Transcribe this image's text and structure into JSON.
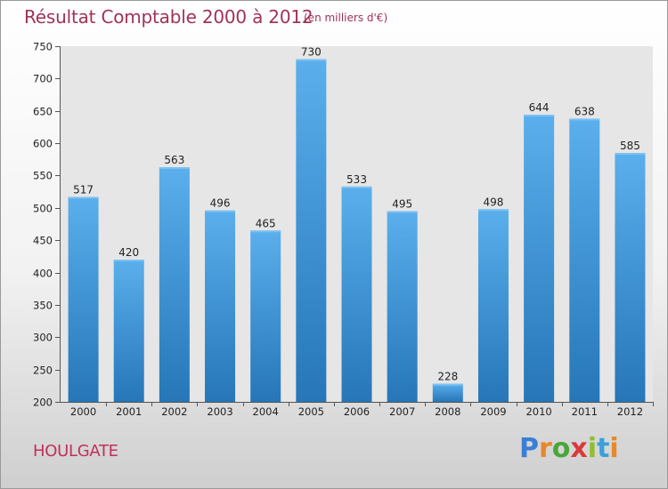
{
  "header": {
    "title": "Résultat Comptable 2000 à 2012",
    "subtitle": "(en milliers d'€)"
  },
  "footer": {
    "city": "HOULGATE",
    "brand": "Proxiti",
    "brand_letters": [
      "P",
      "r",
      "o",
      "x",
      "i",
      "t",
      "i"
    ],
    "brand_colors": [
      "#3a7fd6",
      "#e7882a",
      "#4aa63a",
      "#d83a3a",
      "#8fbf2a",
      "#3aa0d8",
      "#e7882a"
    ]
  },
  "colors": {
    "bar_top": "#5aafec",
    "bar_bottom": "#2676b8",
    "title": "#a03355"
  },
  "chart_data": {
    "type": "bar",
    "title": "Résultat Comptable 2000 à 2012",
    "subtitle": "(en milliers d'€)",
    "xlabel": "",
    "ylabel": "",
    "categories": [
      "2000",
      "2001",
      "2002",
      "2003",
      "2004",
      "2005",
      "2006",
      "2007",
      "2008",
      "2009",
      "2010",
      "2011",
      "2012"
    ],
    "values": [
      517,
      420,
      563,
      496,
      465,
      730,
      533,
      495,
      228,
      498,
      644,
      638,
      585
    ],
    "ylim": [
      200,
      750
    ],
    "yticks": [
      200,
      250,
      300,
      350,
      400,
      450,
      500,
      550,
      600,
      650,
      700,
      750
    ],
    "grid": false
  }
}
